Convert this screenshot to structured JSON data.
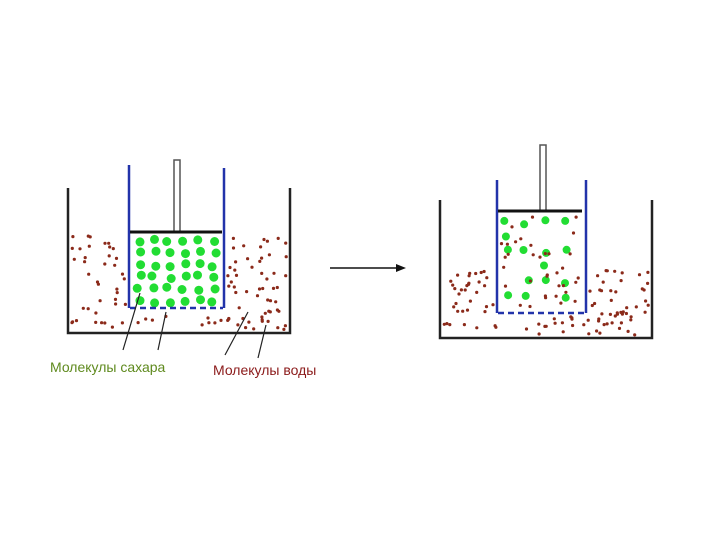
{
  "labels": {
    "sugar": "Молекулы сахара",
    "water": "Молекулы воды"
  }
}
